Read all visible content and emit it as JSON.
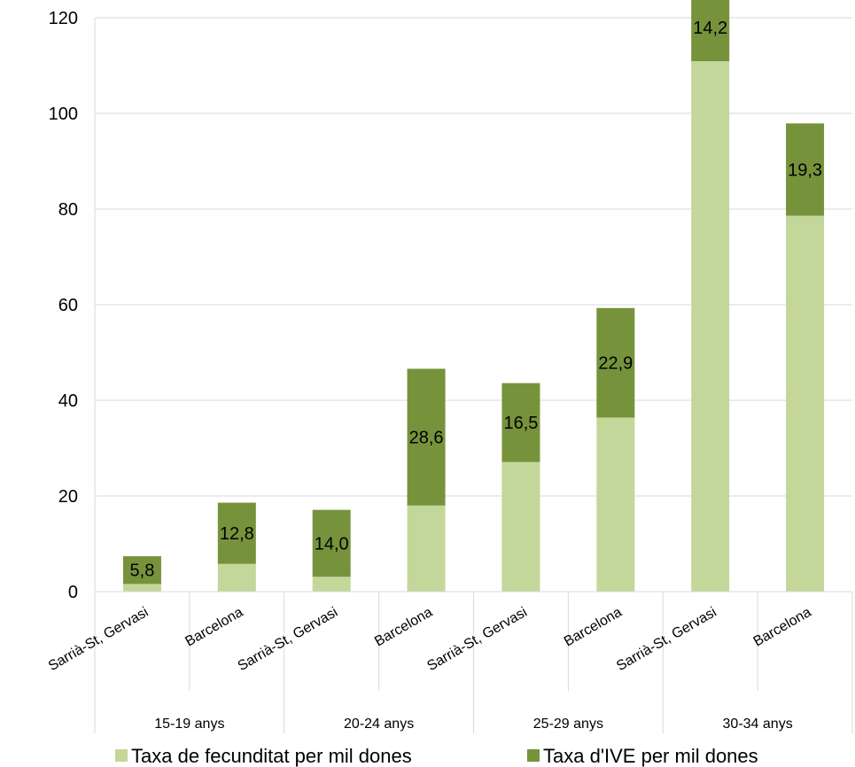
{
  "chart_data": {
    "type": "bar",
    "stacked": true,
    "categories": [
      "Sarrià-St, Gervasi",
      "Barcelona",
      "Sarrià-St, Gervasi",
      "Barcelona",
      "Sarrià-St, Gervasi",
      "Barcelona",
      "Sarrià-St, Gervasi",
      "Barcelona"
    ],
    "groups": [
      {
        "label": "15-19 anys",
        "span": 2
      },
      {
        "label": "20-24 anys",
        "span": 2
      },
      {
        "label": "25-29 anys",
        "span": 2
      },
      {
        "label": "30-34 anys",
        "span": 2
      }
    ],
    "series": [
      {
        "name": "Taxa de fecunditat per mil dones",
        "color": "#c4d79b",
        "values": [
          1.6,
          5.8,
          3.1,
          18.0,
          27.1,
          36.4,
          110.9,
          78.6
        ]
      },
      {
        "name": "Taxa d'IVE per mil dones",
        "color": "#76933c",
        "values": [
          5.8,
          12.8,
          14.0,
          28.6,
          16.5,
          22.9,
          14.2,
          19.3
        ]
      }
    ],
    "data_labels": [
      "5,8",
      "12,8",
      "14,0",
      "28,6",
      "16,5",
      "22,9",
      "14,2",
      "19,3"
    ],
    "y_ticks": [
      "0",
      "20",
      "40",
      "60",
      "80",
      "100",
      "120"
    ],
    "ylim": [
      0,
      120
    ],
    "grid": true,
    "legend_position": "bottom"
  }
}
